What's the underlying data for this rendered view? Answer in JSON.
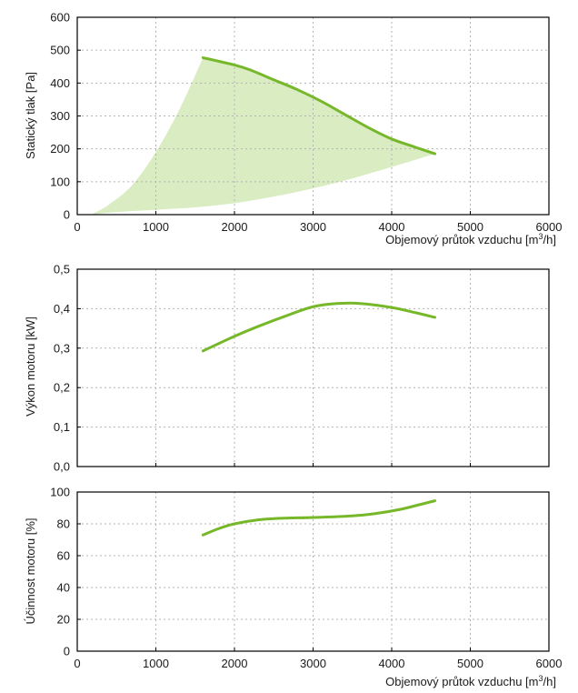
{
  "colors": {
    "curve": "#76b82a",
    "area": "#d9ecc2",
    "grid": "#b3b3b3",
    "axis": "#000000"
  },
  "chart_data": [
    {
      "type": "area",
      "ylabel": "Statický tlak [Pa]",
      "xlabel_main": "Objemový průtok vzduchu [m",
      "xlabel_sup": "3",
      "xlabel_tail": "/h]",
      "xlim": [
        0,
        6000
      ],
      "ylim": [
        0,
        600
      ],
      "xticks": [
        0,
        1000,
        2000,
        3000,
        4000,
        5000,
        6000
      ],
      "xtick_labels": [
        "0",
        "1000",
        "2000",
        "3000",
        "4000",
        "5000",
        "6000"
      ],
      "yticks": [
        0,
        100,
        200,
        300,
        400,
        500,
        600
      ],
      "ytick_labels": [
        "0",
        "100",
        "200",
        "300",
        "400",
        "500",
        "600"
      ],
      "grid": true,
      "series": [
        {
          "x": [
            1600,
            2000,
            2200,
            2500,
            2800,
            3100,
            3400,
            3700,
            4000,
            4300,
            4550
          ],
          "y": [
            477,
            455,
            440,
            410,
            380,
            345,
            305,
            265,
            230,
            205,
            185
          ]
        }
      ],
      "envelope_lower": {
        "x": [
          180,
          500,
          1000,
          1500,
          2000,
          2500,
          3000,
          3500,
          4000,
          4550
        ],
        "y": [
          0,
          8,
          15,
          22,
          35,
          55,
          80,
          110,
          145,
          185
        ]
      },
      "envelope_left": {
        "x": [
          180,
          400,
          700,
          1000,
          1300,
          1600
        ],
        "y": [
          0,
          30,
          90,
          190,
          320,
          477
        ]
      }
    },
    {
      "type": "line",
      "ylabel": "Výkon motoru [kW]",
      "xlim": [
        0,
        6000
      ],
      "ylim": [
        0,
        0.5
      ],
      "xticks": [
        0,
        1000,
        2000,
        3000,
        4000,
        5000,
        6000
      ],
      "yticks": [
        0,
        0.1,
        0.2,
        0.3,
        0.4,
        0.5
      ],
      "ytick_labels": [
        "0,0",
        "0,1",
        "0,2",
        "0,3",
        "0,4",
        "0,5"
      ],
      "grid": true,
      "series": [
        {
          "x": [
            1600,
            2000,
            2300,
            2700,
            3000,
            3300,
            3600,
            4000,
            4300,
            4550
          ],
          "y": [
            0.293,
            0.33,
            0.355,
            0.385,
            0.405,
            0.413,
            0.413,
            0.403,
            0.39,
            0.378
          ]
        }
      ]
    },
    {
      "type": "line",
      "ylabel": "Účinnost motoru [%]",
      "xlabel_main": "Objemový průtok vzduchu [m",
      "xlabel_sup": "3",
      "xlabel_tail": "/h]",
      "xlim": [
        0,
        6000
      ],
      "ylim": [
        0,
        100
      ],
      "xticks": [
        0,
        1000,
        2000,
        3000,
        4000,
        5000,
        6000
      ],
      "xtick_labels": [
        "0",
        "1000",
        "2000",
        "3000",
        "4000",
        "5000",
        "6000"
      ],
      "yticks": [
        0,
        20,
        40,
        60,
        80,
        100
      ],
      "ytick_labels": [
        "0",
        "20",
        "40",
        "60",
        "80",
        "100"
      ],
      "grid": true,
      "series": [
        {
          "x": [
            1600,
            1800,
            2000,
            2300,
            2600,
            3000,
            3500,
            3800,
            4100,
            4350,
            4550
          ],
          "y": [
            73,
            77,
            80,
            82.5,
            83.5,
            84,
            85,
            86.5,
            89,
            92,
            94.5
          ]
        }
      ]
    }
  ]
}
